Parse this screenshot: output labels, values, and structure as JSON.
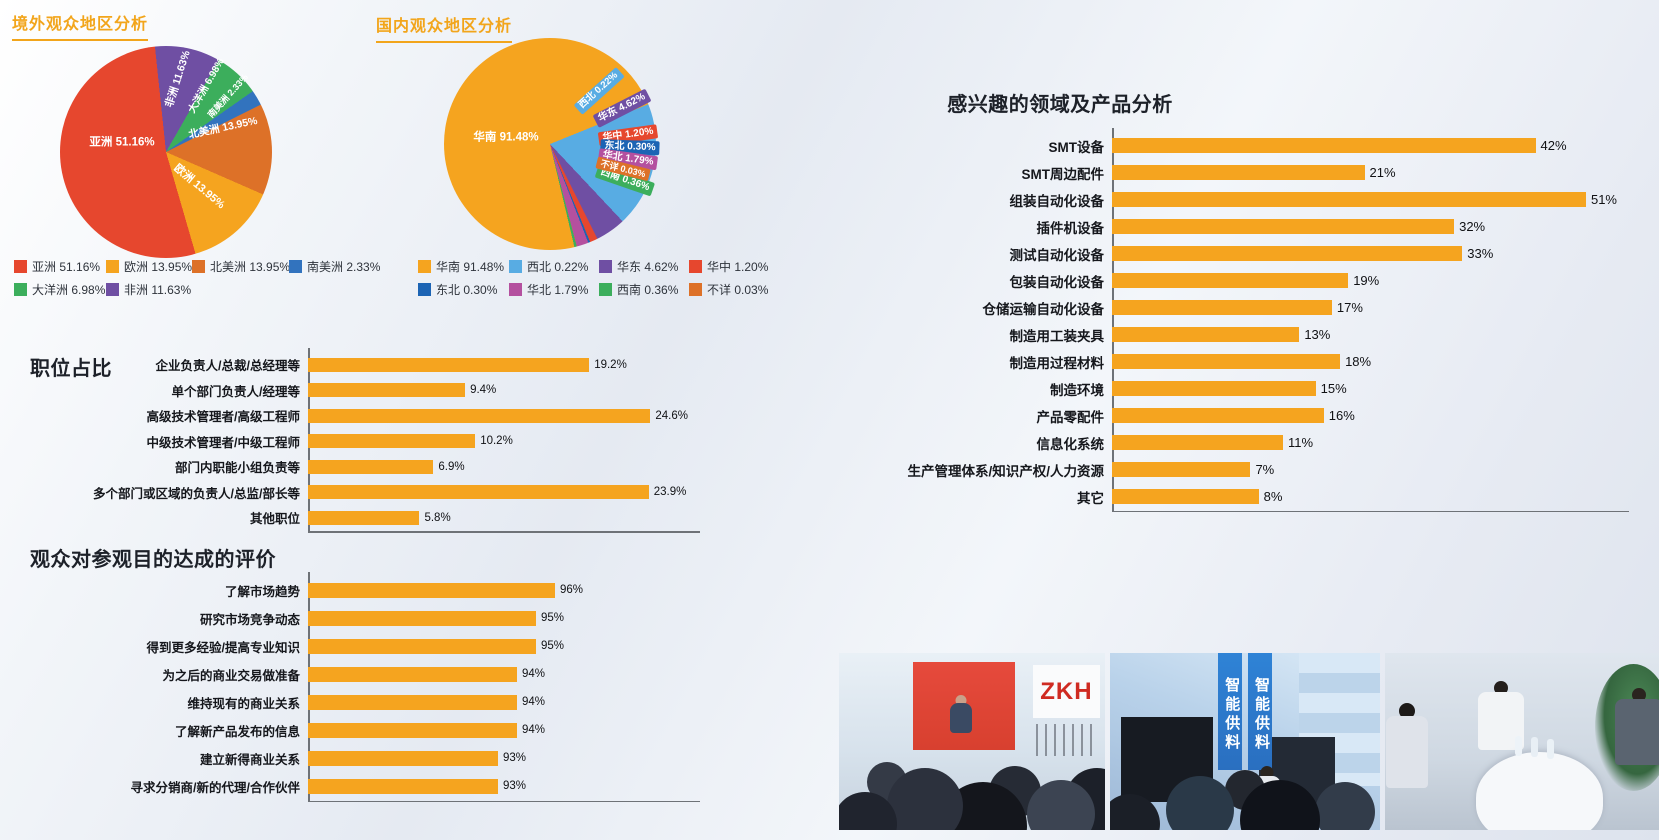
{
  "chart_data": [
    {
      "id": "overseas-regions-pie",
      "type": "pie",
      "title": "境外观众地区分析",
      "legend_position": "bottom",
      "slices": [
        {
          "label": "亚洲",
          "value": 51.16,
          "display": "51.16%",
          "color": "#E6472E"
        },
        {
          "label": "欧洲",
          "value": 13.95,
          "display": "13.95%",
          "color": "#F5A41F"
        },
        {
          "label": "北美洲",
          "value": 13.95,
          "display": "13.95%",
          "color": "#DD7128"
        },
        {
          "label": "南美洲",
          "value": 2.33,
          "display": "2.33%",
          "color": "#3273BE"
        },
        {
          "label": "大洋洲",
          "value": 6.98,
          "display": "6.98%",
          "color": "#3CAE5C"
        },
        {
          "label": "非洲",
          "value": 11.63,
          "display": "11.63%",
          "color": "#6F4FA3"
        }
      ]
    },
    {
      "id": "domestic-regions-pie",
      "type": "pie",
      "title": "国内观众地区分析",
      "legend_position": "bottom",
      "slices": [
        {
          "label": "华南",
          "value": 91.48,
          "display": "91.48%",
          "color": "#F5A41F"
        },
        {
          "label": "西北",
          "value": 0.22,
          "display": "0.22%",
          "color": "#58ACE3"
        },
        {
          "label": "华东",
          "value": 4.62,
          "display": "4.62%",
          "color": "#6F4FA3"
        },
        {
          "label": "华中",
          "value": 1.2,
          "display": "1.20%",
          "color": "#E6472E"
        },
        {
          "label": "东北",
          "value": 0.3,
          "display": "0.30%",
          "color": "#1C64B4"
        },
        {
          "label": "华北",
          "value": 1.79,
          "display": "1.79%",
          "color": "#B4509F"
        },
        {
          "label": "西南",
          "value": 0.36,
          "display": "0.36%",
          "color": "#3CAE5C"
        },
        {
          "label": "不详",
          "value": 0.03,
          "display": "0.03%",
          "color": "#DD7128"
        }
      ]
    },
    {
      "id": "interest-products-bar",
      "type": "bar",
      "orientation": "horizontal",
      "title": "感兴趣的领域及产品分析",
      "bar_color": "#F5A41F",
      "categories": [
        "SMT设备",
        "SMT周边配件",
        "组装自动化设备",
        "插件机设备",
        "测试自动化设备",
        "包装自动化设备",
        "仓储运输自动化设备",
        "制造用工装夹具",
        "制造用过程材料",
        "制造环境",
        "产品零配件",
        "信息化系统",
        "生产管理体系/知识产权/人力资源",
        "其它"
      ],
      "values": [
        42,
        21,
        51,
        32,
        33,
        19,
        17,
        13,
        18,
        15,
        16,
        11,
        7,
        8
      ],
      "labels": [
        "42%",
        "21%",
        "51%",
        "32%",
        "33%",
        "19%",
        "17%",
        "13%",
        "18%",
        "15%",
        "16%",
        "11%",
        "7%",
        "8%"
      ]
    },
    {
      "id": "job-positions-bar",
      "type": "bar",
      "orientation": "horizontal",
      "title": "职位占比",
      "bar_color": "#F5A41F",
      "categories": [
        "企业负责人/总裁/总经理等",
        "单个部门负责人/经理等",
        "高级技术管理者/高级工程师",
        "中级技术管理者/中级工程师",
        "部门内职能小组负责等",
        "多个部门或区域的负责人/总监/部长等",
        "其他职位"
      ],
      "values": [
        19.2,
        9.4,
        24.6,
        10.2,
        6.9,
        23.9,
        5.8
      ],
      "labels": [
        "19.2%",
        "9.4%",
        "24.6%",
        "10.2%",
        "6.9%",
        "23.9%",
        "5.8%"
      ]
    },
    {
      "id": "visit-purpose-bar",
      "type": "bar",
      "orientation": "horizontal",
      "title": "观众对参观目的达成的评价",
      "bar_color": "#F5A41F",
      "xlim": [
        83,
        103
      ],
      "categories": [
        "了解市场趋势",
        "研究市场竞争动态",
        "得到更多经验/提高专业知识",
        "为之后的商业交易做准备",
        "维持现有的商业关系",
        "了解新产品发布的信息",
        "建立新得商业关系",
        "寻求分销商/新的代理/合作伙伴"
      ],
      "values": [
        96,
        95,
        95,
        94,
        94,
        94,
        93,
        93
      ],
      "labels": [
        "96%",
        "95%",
        "95%",
        "94%",
        "94%",
        "94%",
        "93%",
        "93%"
      ]
    }
  ],
  "photos": [
    {
      "name": "exhibitor-booth-presentation",
      "visible_text": "ZKH"
    },
    {
      "name": "smart-feeding-equipment-booth",
      "visible_text": "智能供料"
    },
    {
      "name": "business-meeting-table",
      "visible_text": ""
    }
  ],
  "theme": {
    "accent_orange": "#F5A41F",
    "title_orange": "#F2A51B",
    "heading_dark": "#1D2129"
  }
}
